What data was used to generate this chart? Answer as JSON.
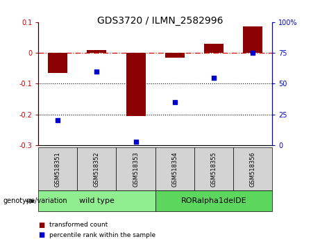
{
  "title": "GDS3720 / ILMN_2582996",
  "samples": [
    "GSM518351",
    "GSM518352",
    "GSM518353",
    "GSM518354",
    "GSM518355",
    "GSM518356"
  ],
  "red_values": [
    -0.065,
    0.01,
    -0.205,
    -0.015,
    0.03,
    0.085
  ],
  "blue_values_pct": [
    20,
    60,
    3,
    35,
    55,
    75
  ],
  "ylim_left": [
    -0.3,
    0.1
  ],
  "ylim_right": [
    0,
    100
  ],
  "yticks_left": [
    -0.3,
    -0.2,
    -0.1,
    0.0,
    0.1
  ],
  "yticks_right": [
    0,
    25,
    50,
    75,
    100
  ],
  "ytick_labels_right": [
    "0",
    "25",
    "50",
    "75",
    "100%"
  ],
  "hline_y": 0.0,
  "dotted_lines": [
    -0.1,
    -0.2
  ],
  "groups": [
    {
      "label": "wild type",
      "samples": [
        0,
        1,
        2
      ],
      "color": "#90EE90"
    },
    {
      "label": "RORalpha1delDE",
      "samples": [
        3,
        4,
        5
      ],
      "color": "#5CD65C"
    }
  ],
  "genotype_label": "genotype/variation",
  "legend_red": "transformed count",
  "legend_blue": "percentile rank within the sample",
  "bar_color": "#8B0000",
  "dot_color": "#0000CC",
  "bar_width": 0.5,
  "dot_size": 22,
  "bg_color": "#FFFFFF",
  "plot_bg_color": "#FFFFFF",
  "tick_label_color_left": "#CC0000",
  "tick_label_color_right": "#0000CC",
  "sample_box_color": "#D3D3D3",
  "title_fontsize": 10,
  "tick_fontsize": 7,
  "label_fontsize": 7,
  "group_fontsize": 8
}
